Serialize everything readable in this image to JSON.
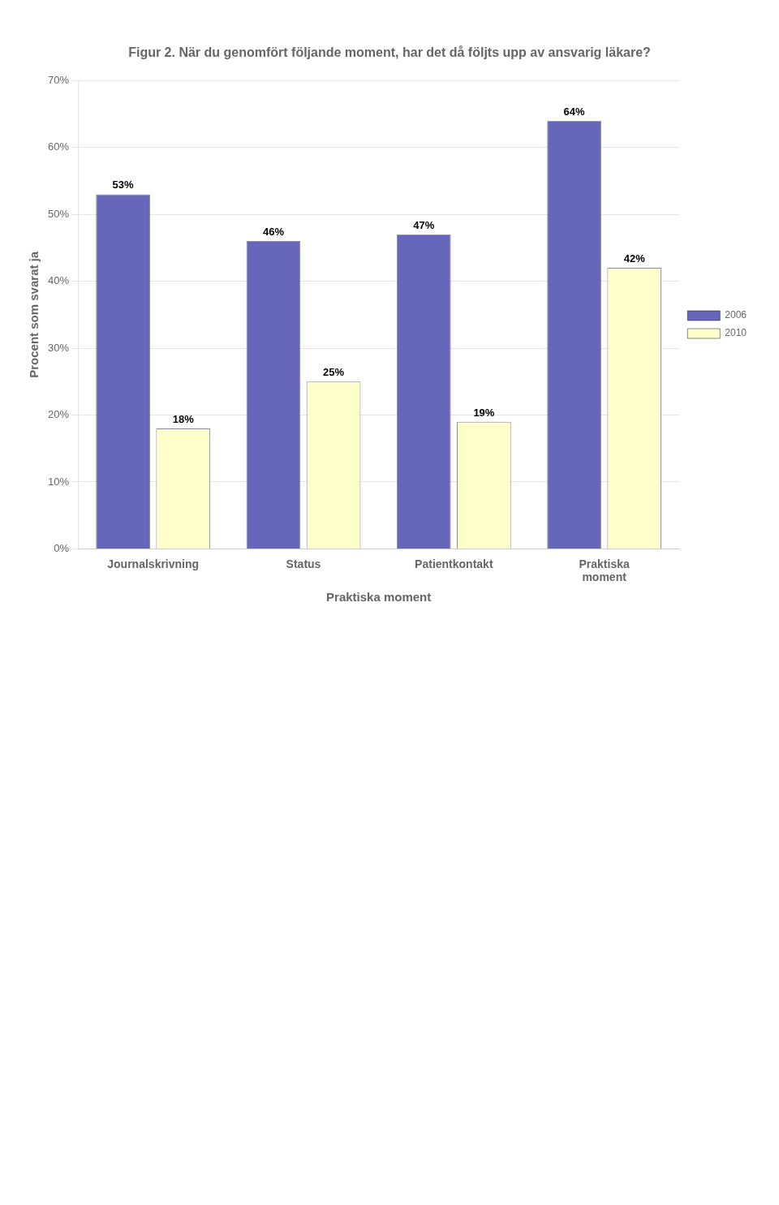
{
  "chart_data": {
    "type": "bar",
    "title": "Figur 2. När du genomfört följande moment, har det då följts upp av ansvarig läkare?",
    "categories": [
      "Journalskrivning",
      "Status",
      "Patientkontakt",
      "Praktiska\nmoment"
    ],
    "series": [
      {
        "name": "2006",
        "color": "#6666BB",
        "values": [
          53,
          46,
          47,
          64
        ],
        "value_labels": [
          "53%",
          "46%",
          "47%",
          "64%"
        ]
      },
      {
        "name": "2010",
        "color": "#FFFFCC",
        "values": [
          18,
          25,
          19,
          42
        ],
        "value_labels": [
          "18%",
          "25%",
          "19%",
          "42%"
        ]
      }
    ],
    "x_label": "Praktiska moment",
    "y_label": "Procent som svarat ja",
    "ylim": [
      0,
      70
    ],
    "yticks": [
      {
        "value": 0,
        "label": "0%"
      },
      {
        "value": 10,
        "label": "10%"
      },
      {
        "value": 20,
        "label": "20%"
      },
      {
        "value": 30,
        "label": "30%"
      },
      {
        "value": 40,
        "label": "40%"
      },
      {
        "value": 50,
        "label": "50%"
      },
      {
        "value": 60,
        "label": "60%"
      },
      {
        "value": 70,
        "label": "70%"
      }
    ],
    "grid": true,
    "legend": "right",
    "data_labels": true
  }
}
